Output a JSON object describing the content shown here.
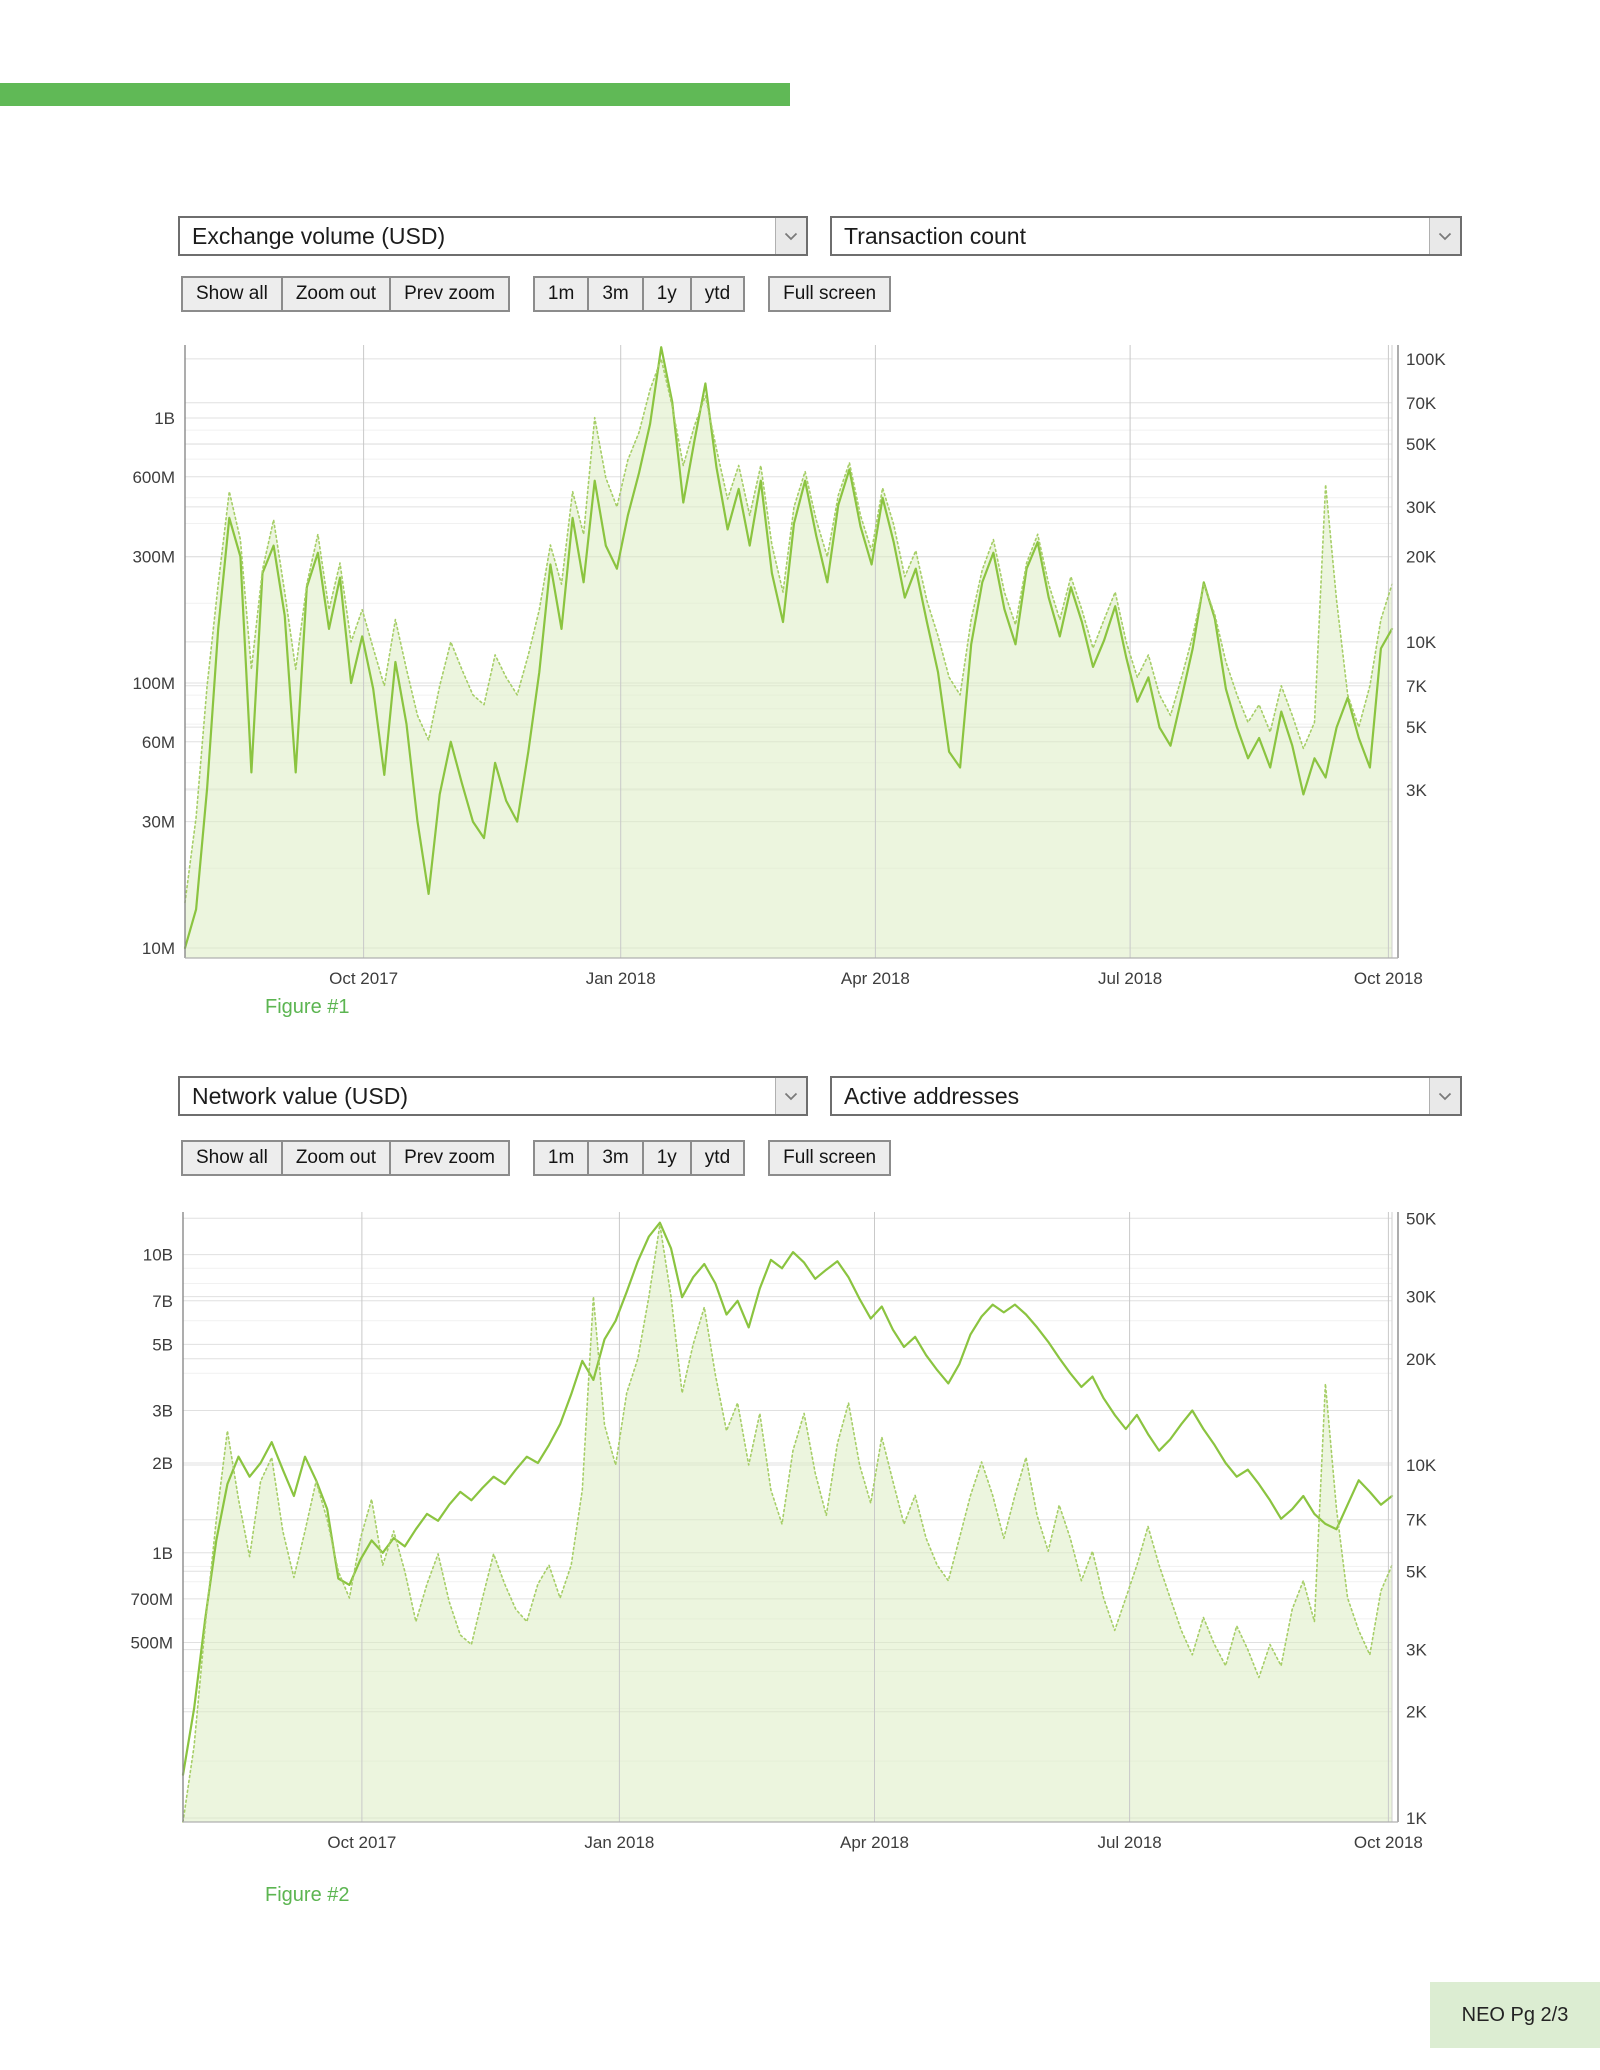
{
  "page": {
    "footer_label": "NEO Pg 2/3",
    "colors": {
      "accent_bar": "#60b956",
      "caption_green": "#5cb551",
      "footer_bg": "#dcedd2"
    }
  },
  "figure1": {
    "left_metric": "Exchange volume (USD)",
    "right_metric": "Transaction count",
    "toolbar_groups": [
      [
        "Show all",
        "Zoom out",
        "Prev zoom"
      ],
      [
        "1m",
        "3m",
        "1y",
        "ytd"
      ],
      [
        "Full screen"
      ]
    ],
    "caption": "Figure #1"
  },
  "figure2": {
    "left_metric": "Network value (USD)",
    "right_metric": "Active addresses",
    "toolbar_groups": [
      [
        "Show all",
        "Zoom out",
        "Prev zoom"
      ],
      [
        "1m",
        "3m",
        "1y",
        "ytd"
      ],
      [
        "Full screen"
      ]
    ],
    "caption": "Figure #2"
  },
  "chart_data": [
    {
      "type": "line",
      "title": "Figure #1",
      "x_axis": {
        "tick_labels": [
          "Oct 2017",
          "Jan 2018",
          "Apr 2018",
          "Jul 2018",
          "Oct 2018"
        ],
        "tick_positions": [
          0.148,
          0.361,
          0.572,
          0.783,
          0.997
        ]
      },
      "left_axis": {
        "metric": "Exchange volume (USD)",
        "scale": "log",
        "min": 9170000,
        "max": 1886000000,
        "ticks": [
          {
            "label": "10M",
            "v": 10000000
          },
          {
            "label": "30M",
            "v": 30000000
          },
          {
            "label": "60M",
            "v": 60000000
          },
          {
            "label": "100M",
            "v": 100000000
          },
          {
            "label": "300M",
            "v": 300000000
          },
          {
            "label": "600M",
            "v": 600000000
          },
          {
            "label": "1B",
            "v": 1000000000
          }
        ]
      },
      "right_axis": {
        "metric": "Transaction count",
        "scale": "log",
        "min": 764,
        "max": 112000,
        "ticks": [
          {
            "label": "3K",
            "v": 3000
          },
          {
            "label": "5K",
            "v": 5000
          },
          {
            "label": "7K",
            "v": 7000
          },
          {
            "label": "10K",
            "v": 10000
          },
          {
            "label": "20K",
            "v": 20000
          },
          {
            "label": "30K",
            "v": 30000
          },
          {
            "label": "50K",
            "v": 50000
          },
          {
            "label": "70K",
            "v": 70000
          },
          {
            "label": "100K",
            "v": 100000
          }
        ]
      },
      "series": [
        {
          "name": "Exchange volume (USD)",
          "axis": "left",
          "style": "solid",
          "unit": 1000000,
          "values": [
            10,
            14,
            40,
            160,
            420,
            300,
            46,
            260,
            330,
            180,
            46,
            230,
            310,
            160,
            250,
            100,
            150,
            95,
            45,
            120,
            70,
            30,
            16,
            38,
            60,
            42,
            30,
            26,
            50,
            36,
            30,
            55,
            110,
            280,
            160,
            420,
            240,
            580,
            330,
            270,
            430,
            620,
            950,
            1850,
            1150,
            480,
            820,
            1350,
            650,
            380,
            540,
            330,
            580,
            260,
            170,
            400,
            580,
            360,
            240,
            470,
            640,
            390,
            280,
            500,
            340,
            210,
            270,
            170,
            110,
            55,
            48,
            140,
            240,
            310,
            190,
            140,
            270,
            340,
            210,
            150,
            230,
            170,
            115,
            145,
            195,
            125,
            85,
            105,
            68,
            58,
            88,
            135,
            240,
            175,
            95,
            68,
            52,
            62,
            48,
            78,
            58,
            38,
            52,
            44,
            68,
            88,
            62,
            48,
            135,
            160
          ]
        },
        {
          "name": "Transaction count",
          "axis": "right",
          "style": "dotted",
          "area_fill": true,
          "unit": 1000,
          "values": [
            1.2,
            2.4,
            7,
            16,
            34,
            23,
            8,
            18,
            27,
            15,
            8,
            16,
            24,
            13,
            19,
            10,
            13,
            9.5,
            7,
            12,
            8,
            5.5,
            4.5,
            7,
            10,
            8,
            6.5,
            6,
            9,
            7.5,
            6.5,
            9,
            13,
            22,
            16,
            34,
            24,
            62,
            38,
            30,
            44,
            55,
            78,
            100,
            68,
            42,
            58,
            74,
            48,
            32,
            42,
            28,
            42,
            22,
            15,
            30,
            40,
            27,
            20,
            33,
            43,
            28,
            21,
            35,
            26,
            17,
            21,
            14,
            10.5,
            7.5,
            6.5,
            12,
            18,
            23,
            15,
            11.5,
            19,
            24,
            16,
            12,
            17,
            13,
            9.5,
            12,
            15,
            10,
            7.5,
            9,
            6.5,
            5.5,
            7.5,
            10.5,
            16,
            12.5,
            8.5,
            6.5,
            5.2,
            6,
            4.8,
            7,
            5.5,
            4.2,
            5.2,
            36,
            14,
            6.5,
            5,
            7,
            12,
            16
          ]
        }
      ],
      "colors": {
        "solid_line": "#8bc440",
        "dotted_line": "#a6ce67",
        "area_fill": "#dcecc3",
        "area_opacity": 0.55,
        "grid_major": "#e0e0e0",
        "grid_minor": "#f1f1f1",
        "grid_vertical": "#c9c9c9",
        "axis_line": "#8a8a8a",
        "plot_border": "#cfcfcf",
        "baseline": "#b0b0b0",
        "tick_text": "#3d3d3d"
      }
    },
    {
      "type": "line",
      "title": "Figure #2",
      "x_axis": {
        "tick_labels": [
          "Oct 2017",
          "Jan 2018",
          "Apr 2018",
          "Jul 2018",
          "Oct 2018"
        ],
        "tick_positions": [
          0.148,
          0.361,
          0.572,
          0.783,
          0.997
        ]
      },
      "left_axis": {
        "metric": "Network value (USD)",
        "scale": "log",
        "min": 125000000,
        "max": 13900000000,
        "ticks": [
          {
            "label": "500M",
            "v": 500000000
          },
          {
            "label": "700M",
            "v": 700000000
          },
          {
            "label": "1B",
            "v": 1000000000
          },
          {
            "label": "2B",
            "v": 2000000000
          },
          {
            "label": "3B",
            "v": 3000000000
          },
          {
            "label": "5B",
            "v": 5000000000
          },
          {
            "label": "7B",
            "v": 7000000000
          },
          {
            "label": "10B",
            "v": 10000000000
          }
        ]
      },
      "right_axis": {
        "metric": "Active addresses",
        "scale": "log",
        "min": 974,
        "max": 52100,
        "ticks": [
          {
            "label": "1K",
            "v": 1000
          },
          {
            "label": "2K",
            "v": 2000
          },
          {
            "label": "3K",
            "v": 3000
          },
          {
            "label": "5K",
            "v": 5000
          },
          {
            "label": "7K",
            "v": 7000
          },
          {
            "label": "10K",
            "v": 10000
          },
          {
            "label": "20K",
            "v": 20000
          },
          {
            "label": "30K",
            "v": 30000
          },
          {
            "label": "50K",
            "v": 50000
          }
        ]
      },
      "series": [
        {
          "name": "Network value (USD)",
          "axis": "left",
          "style": "solid",
          "unit": 1000000000,
          "values": [
            0.18,
            0.3,
            0.6,
            1.1,
            1.7,
            2.1,
            1.8,
            2.0,
            2.35,
            1.9,
            1.55,
            2.1,
            1.75,
            1.4,
            0.82,
            0.78,
            0.95,
            1.1,
            1.0,
            1.12,
            1.05,
            1.2,
            1.35,
            1.28,
            1.45,
            1.6,
            1.5,
            1.65,
            1.8,
            1.7,
            1.9,
            2.1,
            2.0,
            2.3,
            2.7,
            3.4,
            4.4,
            3.8,
            5.2,
            6.0,
            7.5,
            9.5,
            11.5,
            12.8,
            10.5,
            7.2,
            8.4,
            9.3,
            8.0,
            6.3,
            7.0,
            5.7,
            7.7,
            9.6,
            9.0,
            10.2,
            9.4,
            8.3,
            8.9,
            9.5,
            8.4,
            7.1,
            6.1,
            6.7,
            5.6,
            4.9,
            5.3,
            4.6,
            4.1,
            3.7,
            4.3,
            5.4,
            6.2,
            6.8,
            6.4,
            6.8,
            6.3,
            5.7,
            5.1,
            4.5,
            4.0,
            3.6,
            3.9,
            3.3,
            2.9,
            2.6,
            2.9,
            2.5,
            2.2,
            2.4,
            2.7,
            3.0,
            2.6,
            2.3,
            2.0,
            1.8,
            1.9,
            1.7,
            1.5,
            1.3,
            1.4,
            1.55,
            1.35,
            1.25,
            1.2,
            1.45,
            1.75,
            1.6,
            1.45,
            1.55
          ]
        },
        {
          "name": "Active addresses",
          "axis": "right",
          "style": "dotted",
          "area_fill": true,
          "unit": 1000,
          "values": [
            0.9,
            1.6,
            3.5,
            7,
            12.5,
            8,
            5.5,
            9,
            10.5,
            6.5,
            4.8,
            6.5,
            9,
            7,
            5,
            4.2,
            6.2,
            8,
            5.2,
            6.5,
            5,
            3.6,
            4.6,
            5.6,
            4.1,
            3.3,
            3.1,
            4.2,
            5.6,
            4.6,
            3.9,
            3.6,
            4.6,
            5.2,
            4.2,
            5.2,
            8.5,
            30,
            13,
            10,
            16,
            20,
            30,
            48,
            30,
            16,
            22,
            28,
            18,
            12.5,
            15,
            10,
            14,
            8.5,
            6.8,
            11,
            14,
            9.5,
            7.2,
            11.5,
            15,
            10,
            7.8,
            12,
            9,
            6.8,
            8.2,
            6.2,
            5.2,
            4.7,
            6.2,
            8.2,
            10.2,
            8.2,
            6.2,
            8.2,
            10.5,
            7.2,
            5.7,
            7.7,
            6.2,
            4.7,
            5.7,
            4.2,
            3.4,
            4.2,
            5.2,
            6.7,
            5.2,
            4.2,
            3.4,
            2.9,
            3.7,
            3.1,
            2.7,
            3.5,
            3.0,
            2.5,
            3.1,
            2.7,
            3.9,
            4.7,
            3.6,
            17,
            7.5,
            4.2,
            3.4,
            2.9,
            4.4,
            5.2
          ]
        }
      ],
      "colors": {
        "solid_line": "#8bc440",
        "dotted_line": "#a6ce67",
        "area_fill": "#dcecc3",
        "area_opacity": 0.55,
        "grid_major": "#e0e0e0",
        "grid_minor": "#f1f1f1",
        "grid_vertical": "#c9c9c9",
        "axis_line": "#8a8a8a",
        "plot_border": "#cfcfcf",
        "baseline": "#b0b0b0",
        "tick_text": "#3d3d3d"
      }
    }
  ]
}
